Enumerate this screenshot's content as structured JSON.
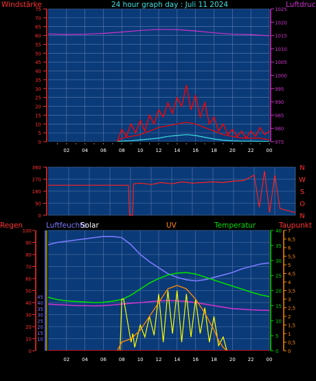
{
  "colors": {
    "background": "#000000",
    "plot": "#0b3a78",
    "grid": "#5a7fb0",
    "wind": "#ff0000",
    "gust": "#ff0000",
    "wind_avg": "#40e0e0",
    "pressure": "#cc33cc",
    "direction": "#ff2020",
    "rain": "#ff0000",
    "humidity": "#7b7bff",
    "solar": "#ffff00",
    "uv": "#ff8800",
    "temperature": "#00dd00",
    "dewpoint": "#cc33cc",
    "x_axis_text": "#ffffff"
  },
  "labels": {
    "windstaerke": "Windstärke",
    "title": "24 hour graph day : Juli 11 2024",
    "luftdruck": "Luftdruck",
    "regen": "Regen",
    "luftfeuchte": "Luftfeuchte",
    "solar": "Solar",
    "uv": "UV",
    "temperatur": "Temperatur",
    "taupunkt": "Taupunkt"
  },
  "x_ticks": [
    "02",
    "04",
    "06",
    "08",
    "10",
    "12",
    "14",
    "16",
    "18",
    "20",
    "22",
    "00"
  ],
  "chart_data": [
    {
      "type": "line",
      "name_left": "Windstärke",
      "name_right": "Luftdruck",
      "x_range_hours": [
        0,
        24
      ],
      "left_axis": {
        "ticks": [
          "0",
          "5",
          "10",
          "15",
          "20",
          "25",
          "30",
          "35",
          "40",
          "45",
          "50",
          "55",
          "60",
          "65",
          "70",
          "75"
        ],
        "ylim": [
          0,
          75
        ]
      },
      "right_axis": {
        "ticks": [
          "975",
          "980",
          "985",
          "990",
          "995",
          "1000",
          "1005",
          "1010",
          "1015",
          "1020",
          "1025"
        ],
        "ylim": [
          975,
          1025
        ]
      },
      "series": [
        {
          "key": "pressure",
          "axis": "right",
          "x": [
            0,
            2,
            4,
            6,
            8,
            10,
            12,
            14,
            16,
            18,
            20,
            22,
            24
          ],
          "y": [
            1015.6,
            1015.4,
            1015.5,
            1015.8,
            1016.3,
            1016.9,
            1017.3,
            1017.2,
            1016.7,
            1016.0,
            1015.5,
            1015.3,
            1014.9
          ]
        },
        {
          "key": "gust",
          "axis": "left",
          "x": [
            7.5,
            8,
            8.5,
            9,
            9.5,
            10,
            10.5,
            11,
            11.5,
            12,
            12.5,
            13,
            13.5,
            14,
            14.5,
            15,
            15.5,
            16,
            16.5,
            17,
            17.5,
            18,
            18.5,
            19,
            19.5,
            20,
            20.5,
            21,
            21.5,
            22,
            22.5,
            23,
            23.5,
            24
          ],
          "y": [
            0,
            7,
            3,
            10,
            5,
            12,
            6,
            15,
            10,
            18,
            14,
            22,
            16,
            25,
            20,
            32,
            18,
            26,
            14,
            22,
            10,
            14,
            6,
            10,
            4,
            7,
            3,
            6,
            2,
            6,
            3,
            8,
            4,
            6
          ]
        },
        {
          "key": "wind",
          "axis": "left",
          "x": [
            7.5,
            8,
            9,
            10,
            11,
            12,
            13,
            14,
            15,
            16,
            17,
            18,
            19,
            20,
            21,
            22,
            23,
            24
          ],
          "y": [
            0,
            2,
            3,
            4,
            6,
            8,
            9,
            10,
            11,
            10,
            8,
            6,
            4,
            3,
            2,
            2,
            2,
            1
          ]
        },
        {
          "key": "wind_avg",
          "axis": "left",
          "x": [
            7.5,
            8,
            9,
            10,
            11,
            12,
            13,
            14,
            15,
            16,
            17,
            18,
            19,
            20,
            21,
            22,
            23,
            24
          ],
          "y": [
            0,
            0.3,
            0.5,
            1,
            1.5,
            2,
            3,
            3.5,
            4,
            3.5,
            2.5,
            1.5,
            0.8,
            0.5,
            0.3,
            0.3,
            0.2,
            0.1
          ]
        }
      ]
    },
    {
      "type": "line",
      "name_right": [
        "N",
        "W",
        "S",
        "O",
        "N"
      ],
      "x_range_hours": [
        0,
        24
      ],
      "left_axis": {
        "ticks": [
          "0",
          "90",
          "180",
          "270",
          "360"
        ],
        "ylim": [
          0,
          360
        ]
      },
      "series": [
        {
          "key": "direction",
          "x": [
            0,
            7.8,
            7.9,
            8.2,
            8.3,
            9,
            10,
            11,
            12,
            13,
            14,
            15,
            16,
            17,
            18,
            19,
            20,
            20.5,
            21,
            21.5,
            22,
            22.5,
            23,
            23.5,
            24
          ],
          "y": [
            225,
            225,
            0,
            0,
            235,
            240,
            230,
            245,
            235,
            250,
            240,
            245,
            250,
            245,
            255,
            260,
            300,
            60,
            330,
            20,
            300,
            50,
            40,
            30,
            20
          ]
        }
      ]
    },
    {
      "type": "line",
      "name_left": "Regen",
      "x_range_hours": [
        0,
        24
      ],
      "axes": {
        "rain": {
          "ticks": [
            "0",
            "10",
            "20",
            "30",
            "40",
            "50",
            "60",
            "70",
            "80",
            "90",
            "100"
          ],
          "ylim": [
            0,
            100
          ]
        },
        "humidity": {
          "ticks": [
            "10",
            "15",
            "20",
            "25",
            "30",
            "35",
            "40",
            "45"
          ],
          "ylim": [
            0,
            100
          ]
        },
        "temperature": {
          "ticks": [
            "0",
            "5",
            "10",
            "15",
            "20",
            "25",
            "30",
            "35",
            "40"
          ],
          "ylim": [
            0,
            40
          ]
        },
        "uv": {
          "ticks": [
            "0",
            "0,5",
            "1",
            "1,5",
            "2",
            "2,5",
            "3",
            "3,5",
            "4",
            "4,5",
            "5",
            "5,5",
            "6",
            "6,5",
            "7"
          ],
          "ylim": [
            0,
            7
          ]
        }
      },
      "series": [
        {
          "key": "humidity",
          "x": [
            0,
            1,
            2,
            3,
            4,
            5,
            6,
            7,
            8,
            9,
            10,
            11,
            12,
            13,
            14,
            15,
            16,
            17,
            18,
            19,
            20,
            21,
            22,
            23,
            24
          ],
          "y": [
            88,
            90,
            91,
            92,
            93,
            94,
            95,
            95,
            94,
            88,
            80,
            74,
            69,
            64,
            61,
            59,
            58,
            59,
            61,
            63,
            65,
            68,
            70,
            72,
            73
          ]
        },
        {
          "key": "temperature",
          "x": [
            0,
            1,
            2,
            3,
            4,
            5,
            6,
            7,
            8,
            9,
            10,
            11,
            12,
            13,
            14,
            15,
            16,
            17,
            18,
            19,
            20,
            21,
            22,
            23,
            24
          ],
          "y": [
            17.8,
            17,
            16.6,
            16.4,
            16.2,
            16.0,
            16.1,
            16.5,
            17.0,
            18.5,
            20.5,
            22.5,
            24,
            25.2,
            25.8,
            26,
            25.5,
            24.5,
            23.5,
            22.5,
            21.5,
            20.5,
            19.5,
            18.6,
            18.0
          ]
        },
        {
          "key": "dewpoint",
          "x": [
            0,
            1,
            2,
            3,
            4,
            5,
            6,
            7,
            8,
            9,
            10,
            11,
            12,
            13,
            14,
            15,
            16,
            17,
            18,
            19,
            20,
            21,
            22,
            23,
            24
          ],
          "y": [
            15.5,
            15.3,
            15.2,
            15.0,
            15.0,
            14.9,
            15.0,
            15.2,
            15.5,
            15.8,
            16.0,
            16.3,
            16.5,
            16.7,
            16.6,
            16.4,
            16.0,
            15.5,
            15.0,
            14.5,
            14.0,
            13.8,
            13.6,
            13.5,
            13.4
          ]
        },
        {
          "key": "solar",
          "x": [
            7.8,
            8,
            8.2,
            9,
            9.2,
            9.4,
            10,
            10.5,
            11,
            11.5,
            12,
            12.5,
            13,
            13.5,
            14,
            14.5,
            15,
            15.5,
            16,
            16.5,
            17,
            17.5,
            18,
            18.5,
            19,
            19.4
          ],
          "y": [
            0,
            3,
            3,
            0.5,
            1,
            0.2,
            1.5,
            0.8,
            2,
            0.9,
            3.3,
            0.5,
            3.5,
            1.0,
            3.5,
            0.5,
            3.3,
            0.8,
            3.0,
            1.0,
            2.5,
            0.5,
            2.0,
            0.3,
            0.8,
            0
          ]
        },
        {
          "key": "uv",
          "x": [
            7.5,
            8,
            9,
            10,
            11,
            12,
            13,
            14,
            15,
            16,
            17,
            18,
            18.5,
            19,
            19.4
          ],
          "y": [
            0,
            0.5,
            0.7,
            1.2,
            2.0,
            2.8,
            3.6,
            3.8,
            3.6,
            3.0,
            2.2,
            1.2,
            0.6,
            0.2,
            0
          ]
        },
        {
          "key": "rain",
          "x": [
            0,
            24
          ],
          "y": [
            0,
            0
          ]
        }
      ]
    }
  ]
}
